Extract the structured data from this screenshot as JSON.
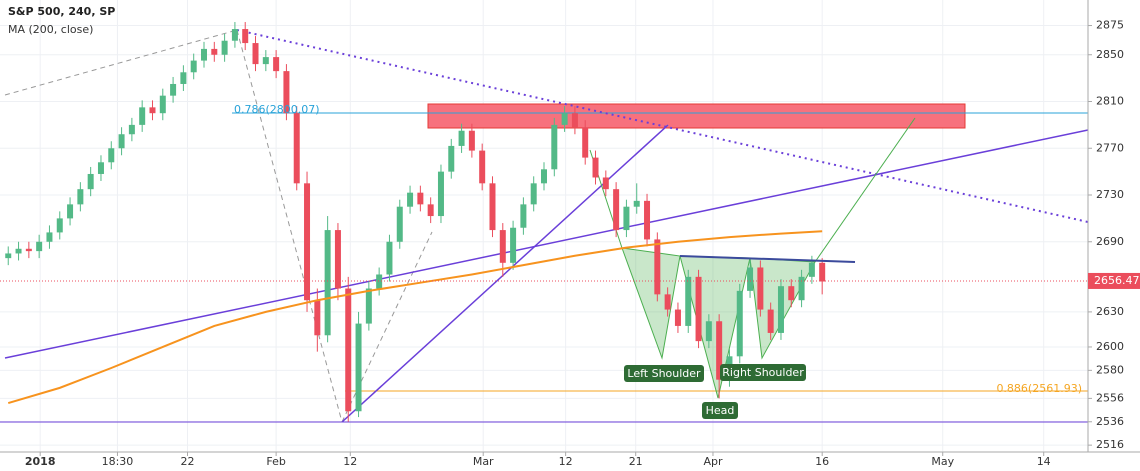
{
  "chart_data": {
    "type": "candlestick",
    "title": "S&P 500, 240, SP",
    "subtitle": "MA (200, close)",
    "up_color": "#53b987",
    "down_color": "#eb4d5c",
    "open": [
      2676,
      2680,
      2684,
      2682,
      2690,
      2698,
      2710,
      2722,
      2735,
      2748,
      2758,
      2770,
      2782,
      2790,
      2805,
      2800,
      2815,
      2825,
      2835,
      2845,
      2855,
      2850,
      2862,
      2872,
      2860,
      2842,
      2848,
      2836,
      2800,
      2740,
      2640,
      2610,
      2700,
      2650,
      2545,
      2620,
      2650,
      2662,
      2690,
      2720,
      2732,
      2722,
      2712,
      2750,
      2772,
      2785,
      2768,
      2740,
      2700,
      2672,
      2702,
      2722,
      2740,
      2752,
      2790,
      2800,
      2788,
      2762,
      2745,
      2735,
      2700,
      2720,
      2725,
      2692,
      2645,
      2632,
      2618,
      2660,
      2605,
      2622,
      2572,
      2592,
      2648,
      2668,
      2632,
      2612,
      2652,
      2640,
      2660,
      2672
    ],
    "high": [
      2686,
      2690,
      2690,
      2696,
      2704,
      2716,
      2728,
      2741,
      2754,
      2764,
      2776,
      2788,
      2796,
      2811,
      2811,
      2821,
      2831,
      2841,
      2851,
      2861,
      2861,
      2868,
      2878,
      2878,
      2866,
      2854,
      2854,
      2842,
      2806,
      2750,
      2650,
      2712,
      2706,
      2660,
      2630,
      2656,
      2668,
      2696,
      2726,
      2738,
      2738,
      2728,
      2756,
      2778,
      2791,
      2791,
      2774,
      2746,
      2706,
      2708,
      2728,
      2746,
      2758,
      2796,
      2806,
      2806,
      2794,
      2768,
      2751,
      2741,
      2726,
      2740,
      2731,
      2698,
      2651,
      2638,
      2666,
      2666,
      2628,
      2628,
      2598,
      2654,
      2674,
      2674,
      2638,
      2658,
      2658,
      2666,
      2678,
      2676
    ],
    "low": [
      2670,
      2674,
      2676,
      2676,
      2684,
      2692,
      2704,
      2716,
      2729,
      2742,
      2752,
      2764,
      2776,
      2784,
      2794,
      2794,
      2809,
      2819,
      2829,
      2839,
      2844,
      2844,
      2856,
      2854,
      2836,
      2836,
      2830,
      2794,
      2734,
      2630,
      2596,
      2604,
      2640,
      2536,
      2540,
      2614,
      2644,
      2656,
      2684,
      2714,
      2716,
      2706,
      2706,
      2744,
      2766,
      2762,
      2734,
      2694,
      2660,
      2666,
      2696,
      2716,
      2734,
      2746,
      2784,
      2782,
      2756,
      2739,
      2729,
      2694,
      2694,
      2714,
      2686,
      2639,
      2626,
      2612,
      2612,
      2599,
      2599,
      2556,
      2566,
      2586,
      2642,
      2626,
      2606,
      2606,
      2634,
      2634,
      2654,
      2645
    ],
    "close": [
      2680,
      2684,
      2682,
      2690,
      2698,
      2710,
      2722,
      2735,
      2748,
      2758,
      2770,
      2782,
      2790,
      2805,
      2800,
      2815,
      2825,
      2835,
      2845,
      2855,
      2850,
      2862,
      2872,
      2860,
      2842,
      2848,
      2836,
      2800,
      2740,
      2640,
      2610,
      2700,
      2650,
      2545,
      2620,
      2650,
      2662,
      2690,
      2720,
      2732,
      2722,
      2712,
      2750,
      2772,
      2785,
      2768,
      2740,
      2700,
      2672,
      2702,
      2722,
      2740,
      2752,
      2790,
      2800,
      2788,
      2762,
      2745,
      2735,
      2700,
      2720,
      2725,
      2692,
      2645,
      2632,
      2618,
      2660,
      2605,
      2622,
      2572,
      2592,
      2648,
      2668,
      2632,
      2612,
      2652,
      2640,
      2660,
      2672,
      2656
    ],
    "ma": {
      "name": "MA (200, close)",
      "color": "#f7931e",
      "x": [
        0,
        5,
        10,
        15,
        20,
        25,
        30,
        35,
        40,
        45,
        50,
        55,
        60,
        65,
        70,
        75,
        79
      ],
      "values": [
        2552,
        2565,
        2582,
        2600,
        2618,
        2630,
        2640,
        2648,
        2655,
        2662,
        2670,
        2678,
        2685,
        2690,
        2694,
        2697,
        2699
      ]
    },
    "last_price": 2656.47,
    "annotations": [
      "0.786(2800.07)",
      "0.886(2561.93)",
      "Left Shoulder",
      "Right Shoulder",
      "Head"
    ],
    "xlim": [
      -0.8,
      104.8
    ],
    "xticks": [
      {
        "value": 3.1,
        "label": "2018"
      },
      {
        "value": 10.6,
        "label": "18:30"
      },
      {
        "value": 17.4,
        "label": "22"
      },
      {
        "value": 26,
        "label": "Feb"
      },
      {
        "value": 33.2,
        "label": "12"
      },
      {
        "value": 46.1,
        "label": "Mar"
      },
      {
        "value": 54.1,
        "label": "12"
      },
      {
        "value": 60.9,
        "label": "21"
      },
      {
        "value": 68.4,
        "label": "Apr"
      },
      {
        "value": 79,
        "label": "16"
      },
      {
        "value": 90.7,
        "label": "May"
      },
      {
        "value": 100.5,
        "label": "14"
      }
    ],
    "ylim": [
      2505,
      2890
    ],
    "yticks": [
      2516,
      2536,
      2556,
      2580,
      2600,
      2630,
      2690,
      2730,
      2770,
      2810,
      2850,
      2875
    ],
    "grid": true
  }
}
